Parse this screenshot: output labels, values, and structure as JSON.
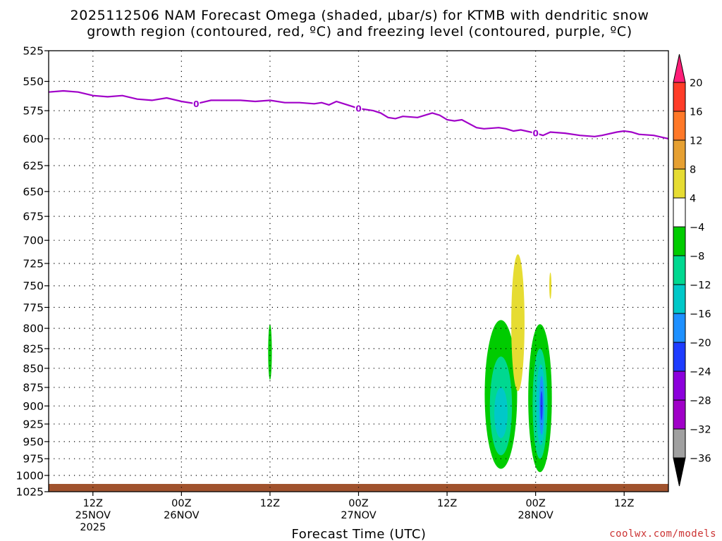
{
  "title": {
    "line1": "2025112506 NAM Forecast Omega (shaded, μbar/s) for KTMB with dendritic snow",
    "line2": "growth region (contoured, red, ºC) and freezing level (contoured, purple, ºC)"
  },
  "credit": "coolwx.com/models",
  "chart_data": {
    "type": "time-height cross section",
    "title": "2025112506 NAM Forecast Omega (shaded, μbar/s) for KTMB with dendritic snow growth region (contoured, red, ºC) and freezing level (contoured, purple, ºC)",
    "xlabel": "Forecast Time (UTC)",
    "ylabel": "",
    "x_ticks": [
      {
        "hours": 6,
        "line1": "12Z",
        "line2": "25NOV",
        "line3": "2025"
      },
      {
        "hours": 18,
        "line1": "00Z",
        "line2": "26NOV",
        "line3": ""
      },
      {
        "hours": 30,
        "line1": "12Z",
        "line2": "",
        "line3": ""
      },
      {
        "hours": 42,
        "line1": "00Z",
        "line2": "27NOV",
        "line3": ""
      },
      {
        "hours": 54,
        "line1": "12Z",
        "line2": "",
        "line3": ""
      },
      {
        "hours": 66,
        "line1": "00Z",
        "line2": "28NOV",
        "line3": ""
      },
      {
        "hours": 78,
        "line1": "12Z",
        "line2": "",
        "line3": ""
      }
    ],
    "y_ticks": [
      525,
      550,
      575,
      600,
      625,
      650,
      675,
      700,
      725,
      750,
      775,
      800,
      825,
      850,
      875,
      900,
      925,
      950,
      975,
      1000,
      1025
    ],
    "ylim": [
      525,
      1025
    ],
    "xlim_hours": [
      0,
      84
    ],
    "grid": true,
    "freezing_level": {
      "label": "0",
      "color": "#a000c8",
      "points": [
        [
          0,
          559
        ],
        [
          2,
          558
        ],
        [
          4,
          559
        ],
        [
          6,
          562
        ],
        [
          8,
          563
        ],
        [
          10,
          562
        ],
        [
          12,
          565
        ],
        [
          14,
          566
        ],
        [
          16,
          564
        ],
        [
          18,
          567
        ],
        [
          20,
          569
        ],
        [
          22,
          566
        ],
        [
          24,
          566
        ],
        [
          26,
          566
        ],
        [
          28,
          567
        ],
        [
          30,
          566
        ],
        [
          32,
          568
        ],
        [
          34,
          568
        ],
        [
          36,
          569
        ],
        [
          37,
          568
        ],
        [
          38,
          570
        ],
        [
          39,
          567
        ],
        [
          40,
          569
        ],
        [
          42,
          573
        ],
        [
          44,
          575
        ],
        [
          45,
          577
        ],
        [
          46,
          581
        ],
        [
          47,
          582
        ],
        [
          48,
          580
        ],
        [
          50,
          581
        ],
        [
          52,
          577
        ],
        [
          53,
          579
        ],
        [
          54,
          583
        ],
        [
          55,
          584
        ],
        [
          56,
          583
        ],
        [
          58,
          590
        ],
        [
          59,
          591
        ],
        [
          61,
          590
        ],
        [
          62,
          591
        ],
        [
          63,
          593
        ],
        [
          64,
          592
        ],
        [
          66,
          595
        ],
        [
          67,
          597
        ],
        [
          68,
          594
        ],
        [
          70,
          595
        ],
        [
          72,
          597
        ],
        [
          74,
          598
        ],
        [
          75,
          597
        ],
        [
          77,
          594
        ],
        [
          78,
          593
        ],
        [
          79,
          594
        ],
        [
          80,
          596
        ],
        [
          82,
          597
        ],
        [
          84,
          600
        ]
      ],
      "label_hours": [
        20,
        42,
        66
      ]
    },
    "omega_regions": [
      {
        "level": "-4 to -8",
        "color": "#00cc00",
        "hour_center": 30,
        "half_width_hours": 0.25,
        "p_top": 795,
        "p_bottom": 865
      },
      {
        "level": "-4 to -8",
        "color": "#00cc00",
        "hour_center": 61.3,
        "half_width_hours": 2.2,
        "p_top": 790,
        "p_bottom": 990
      },
      {
        "level": "-8 to -12",
        "color": "#00d890",
        "hour_center": 61.3,
        "half_width_hours": 1.5,
        "p_top": 835,
        "p_bottom": 970
      },
      {
        "level": "-12 to -16",
        "color": "#00c8c8",
        "hour_center": 61.3,
        "half_width_hours": 0.9,
        "p_top": 875,
        "p_bottom": 945
      },
      {
        "level": "-4 to -8",
        "color": "#00cc00",
        "hour_center": 66.6,
        "half_width_hours": 1.6,
        "p_top": 795,
        "p_bottom": 995
      },
      {
        "level": "-8 to -12",
        "color": "#00d890",
        "hour_center": 66.6,
        "half_width_hours": 1.0,
        "p_top": 825,
        "p_bottom": 975
      },
      {
        "level": "-12 to -16",
        "color": "#00c8c8",
        "hour_center": 66.7,
        "half_width_hours": 0.6,
        "p_top": 845,
        "p_bottom": 955
      },
      {
        "level": "-16 to -20",
        "color": "#1e90ff",
        "hour_center": 66.8,
        "half_width_hours": 0.3,
        "p_top": 860,
        "p_bottom": 940
      },
      {
        "level": "-20 to -24",
        "color": "#1e3cff",
        "hour_center": 66.8,
        "half_width_hours": 0.15,
        "p_top": 880,
        "p_bottom": 920
      },
      {
        "level": "4 to 8",
        "color": "#e6dc32",
        "hour_center": 68.0,
        "half_width_hours": 0.15,
        "p_top": 735,
        "p_bottom": 765
      },
      {
        "level": "4 to 8",
        "color": "#e6dc32",
        "hour_center": 63.6,
        "half_width_hours": 0.9,
        "p_top": 715,
        "p_bottom": 880
      }
    ],
    "terrain": {
      "color": "#a0522d",
      "p_top": 1013
    },
    "colorbar": {
      "ticks": [
        "20",
        "16",
        "12",
        "8",
        "4",
        "−4",
        "−8",
        "−12",
        "−16",
        "−20",
        "−24",
        "−28",
        "−32",
        "−36"
      ],
      "colors": [
        "#ff1e78",
        "#ff3c28",
        "#ff7828",
        "#e6a032",
        "#e6dc32",
        "#ffffff",
        "#00cc00",
        "#00d890",
        "#00c8c8",
        "#1e90ff",
        "#1e3cff",
        "#8c00dc",
        "#a000c8",
        "#a0a0a0",
        "#000000"
      ]
    }
  }
}
